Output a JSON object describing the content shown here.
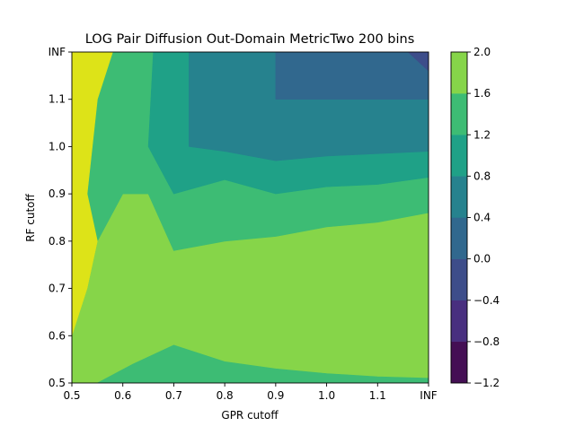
{
  "chart_data": {
    "type": "contourf",
    "title": "LOG Pair Diffusion Out-Domain MetricTwo 200 bins",
    "xlabel": "GPR cutoff",
    "ylabel": "RF cutoff",
    "x_tick_labels": [
      "0.5",
      "0.6",
      "0.7",
      "0.8",
      "0.9",
      "1.0",
      "1.1",
      "INF"
    ],
    "y_tick_labels": [
      "0.5",
      "0.6",
      "0.7",
      "0.8",
      "0.9",
      "1.0",
      "1.1",
      "INF"
    ],
    "xlim": [
      0.5,
      1.2
    ],
    "ylim": [
      0.5,
      1.2
    ],
    "colorbar": {
      "levels": [
        -1.2,
        -0.8,
        -0.4,
        0.0,
        0.4,
        0.8,
        1.2,
        1.6,
        2.0
      ],
      "tick_labels": [
        "−1.2",
        "−0.8",
        "−0.4",
        "0.0",
        "0.4",
        "0.8",
        "1.2",
        "1.6",
        "2.0"
      ],
      "colors": [
        "#440f54",
        "#482f7f",
        "#3d4d8a",
        "#31688e",
        "#26828e",
        "#1fa187",
        "#3dbc74",
        "#86d549",
        "#dde318"
      ]
    },
    "regions": [
      {
        "level_band": [
          1.2,
          1.6
        ],
        "color": "#86d549",
        "points": [
          [
            0.5,
            0.5
          ],
          [
            1.2,
            0.5
          ],
          [
            1.2,
            1.2
          ],
          [
            0.5,
            1.2
          ]
        ]
      },
      {
        "level_band": [
          0.8,
          1.2
        ],
        "color": "#3dbc74",
        "points": [
          [
            0.5,
            0.5
          ],
          [
            0.5,
            0.6
          ],
          [
            0.53,
            0.7
          ],
          [
            0.55,
            0.8
          ],
          [
            0.6,
            0.9
          ],
          [
            0.65,
            0.9
          ],
          [
            0.7,
            0.78
          ],
          [
            0.8,
            0.8
          ],
          [
            0.9,
            0.81
          ],
          [
            1.0,
            0.83
          ],
          [
            1.1,
            0.84
          ],
          [
            1.2,
            0.86
          ],
          [
            1.2,
            1.2
          ],
          [
            0.5,
            1.2
          ]
        ]
      },
      {
        "level_band": [
          0.8,
          1.2
        ],
        "color": "#3dbc74",
        "points": [
          [
            0.55,
            0.5
          ],
          [
            0.62,
            0.54
          ],
          [
            0.7,
            0.58
          ],
          [
            0.8,
            0.545
          ],
          [
            0.9,
            0.53
          ],
          [
            1.0,
            0.52
          ],
          [
            1.1,
            0.513
          ],
          [
            1.2,
            0.51
          ],
          [
            1.2,
            0.5
          ]
        ]
      },
      {
        "level_band": [
          0.4,
          0.8
        ],
        "color": "#1fa187",
        "points": [
          [
            0.66,
            1.2
          ],
          [
            0.65,
            1.0
          ],
          [
            0.7,
            0.9
          ],
          [
            0.8,
            0.93
          ],
          [
            0.9,
            0.9
          ],
          [
            1.0,
            0.915
          ],
          [
            1.1,
            0.92
          ],
          [
            1.2,
            0.935
          ],
          [
            1.2,
            1.2
          ]
        ]
      },
      {
        "level_band": [
          0.0,
          0.4
        ],
        "color": "#26828e",
        "points": [
          [
            0.73,
            1.2
          ],
          [
            0.73,
            1.0
          ],
          [
            0.8,
            0.99
          ],
          [
            0.9,
            0.97
          ],
          [
            1.0,
            0.98
          ],
          [
            1.1,
            0.985
          ],
          [
            1.2,
            0.99
          ],
          [
            1.2,
            1.2
          ]
        ]
      },
      {
        "level_band": [
          -0.4,
          0.0
        ],
        "color": "#31688e",
        "points": [
          [
            0.9,
            1.2
          ],
          [
            0.9,
            1.1
          ],
          [
            1.2,
            1.1
          ],
          [
            1.2,
            1.2
          ]
        ]
      },
      {
        "level_band": [
          -0.8,
          -0.4
        ],
        "color": "#3d4d8a",
        "points": [
          [
            1.16,
            1.2
          ],
          [
            1.2,
            1.16
          ],
          [
            1.2,
            1.2
          ]
        ]
      },
      {
        "level_band": [
          1.6,
          2.0
        ],
        "color": "#dde318",
        "points": [
          [
            0.5,
            0.6
          ],
          [
            0.53,
            0.7
          ],
          [
            0.55,
            0.8
          ],
          [
            0.53,
            0.9
          ],
          [
            0.55,
            1.1
          ],
          [
            0.58,
            1.2
          ],
          [
            0.5,
            1.2
          ]
        ]
      }
    ]
  }
}
